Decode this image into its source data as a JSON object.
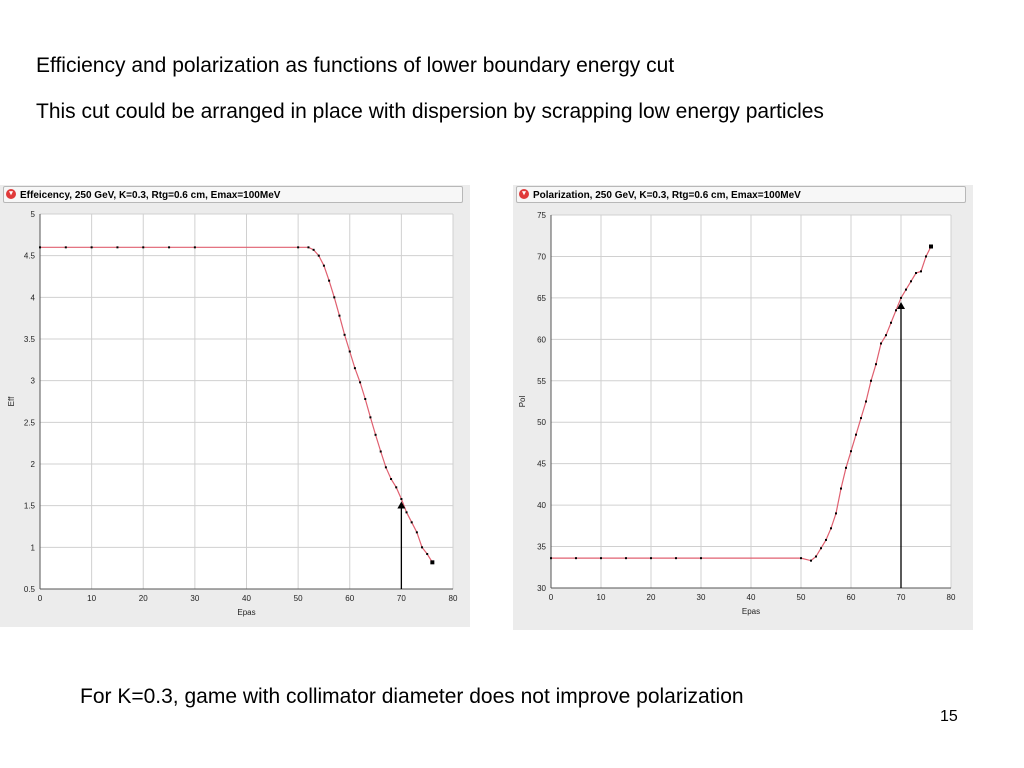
{
  "slide": {
    "line1": "Efficiency and polarization as functions of lower boundary energy cut",
    "line2": "This cut could be arranged in place with dispersion by scrapping low energy particles",
    "footer": "For K=0.3, game with collimator diameter does not improve  polarization",
    "page_number": "15"
  },
  "colors": {
    "curve": "#e06070",
    "point": "#000000",
    "grid": "#d0d0d0",
    "panel": "#ececec"
  },
  "chart_data": [
    {
      "type": "line",
      "title": "Effeicency, 250 GeV, K=0.3, Rtg=0.6 cm, Emax=100MeV",
      "xlabel": "Epas",
      "ylabel": "Eff",
      "xlim": [
        0,
        80
      ],
      "ylim": [
        0.5,
        5
      ],
      "xticks": [
        0,
        10,
        20,
        30,
        40,
        50,
        60,
        70,
        80
      ],
      "yticks": [
        0.5,
        1,
        1.5,
        2,
        2.5,
        3,
        3.5,
        4,
        4.5,
        5
      ],
      "grid": true,
      "x": [
        0,
        5,
        10,
        15,
        20,
        25,
        30,
        50,
        52,
        53,
        54,
        55,
        56,
        57,
        58,
        59,
        60,
        61,
        62,
        63,
        64,
        65,
        66,
        67,
        68,
        69,
        70,
        71,
        72,
        73,
        74,
        75,
        76
      ],
      "y": [
        4.6,
        4.6,
        4.6,
        4.6,
        4.6,
        4.6,
        4.6,
        4.6,
        4.6,
        4.57,
        4.5,
        4.38,
        4.2,
        4.0,
        3.78,
        3.55,
        3.35,
        3.15,
        2.98,
        2.78,
        2.56,
        2.35,
        2.15,
        1.96,
        1.82,
        1.72,
        1.58,
        1.42,
        1.3,
        1.18,
        1.0,
        0.92,
        0.82
      ],
      "annotation": {
        "type": "arrow",
        "x": 70,
        "y_from": 0.5,
        "y_to": 1.55
      }
    },
    {
      "type": "line",
      "title": "Polarization, 250 GeV, K=0.3, Rtg=0.6 cm, Emax=100MeV",
      "xlabel": "Epas",
      "ylabel": "Pol",
      "xlim": [
        0,
        80
      ],
      "ylim": [
        30,
        75
      ],
      "xticks": [
        0,
        10,
        20,
        30,
        40,
        50,
        60,
        70,
        80
      ],
      "yticks": [
        30,
        35,
        40,
        45,
        50,
        55,
        60,
        65,
        70,
        75
      ],
      "grid": true,
      "x": [
        0,
        5,
        10,
        15,
        20,
        25,
        30,
        50,
        52,
        53,
        54,
        55,
        56,
        57,
        58,
        59,
        60,
        61,
        62,
        63,
        64,
        65,
        66,
        67,
        68,
        69,
        70,
        71,
        72,
        73,
        74,
        75,
        76
      ],
      "y": [
        33.6,
        33.6,
        33.6,
        33.6,
        33.6,
        33.6,
        33.6,
        33.6,
        33.3,
        33.8,
        34.8,
        35.8,
        37.2,
        39.0,
        42.0,
        44.5,
        46.5,
        48.5,
        50.5,
        52.5,
        55.0,
        57.0,
        59.5,
        60.5,
        62.0,
        63.5,
        65.0,
        66.0,
        67.0,
        68.0,
        68.2,
        70.0,
        71.2
      ],
      "annotation": {
        "type": "arrow",
        "x": 70,
        "y_from": 30,
        "y_to": 64.5
      }
    }
  ]
}
